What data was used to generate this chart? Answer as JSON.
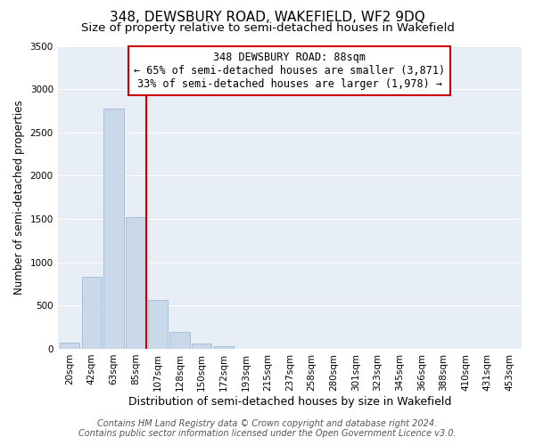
{
  "title": "348, DEWSBURY ROAD, WAKEFIELD, WF2 9DQ",
  "subtitle": "Size of property relative to semi-detached houses in Wakefield",
  "bar_labels": [
    "20sqm",
    "42sqm",
    "63sqm",
    "85sqm",
    "107sqm",
    "128sqm",
    "150sqm",
    "172sqm",
    "193sqm",
    "215sqm",
    "237sqm",
    "258sqm",
    "280sqm",
    "301sqm",
    "323sqm",
    "345sqm",
    "366sqm",
    "388sqm",
    "410sqm",
    "431sqm",
    "453sqm"
  ],
  "bar_values": [
    70,
    830,
    2780,
    1520,
    560,
    190,
    65,
    35,
    0,
    0,
    0,
    0,
    0,
    0,
    0,
    0,
    0,
    0,
    0,
    0,
    0
  ],
  "bar_color": "#c9d9ea",
  "bar_edge_color": "#a0b8d0",
  "vline_color": "#cc0000",
  "ylim": [
    0,
    3500
  ],
  "yticks": [
    0,
    500,
    1000,
    1500,
    2000,
    2500,
    3000,
    3500
  ],
  "xlabel": "Distribution of semi-detached houses by size in Wakefield",
  "ylabel": "Number of semi-detached properties",
  "annotation_title": "348 DEWSBURY ROAD: 88sqm",
  "annotation_line1": "← 65% of semi-detached houses are smaller (3,871)",
  "annotation_line2": "33% of semi-detached houses are larger (1,978) →",
  "annotation_box_color": "#ffffff",
  "annotation_box_edge": "#cc0000",
  "footer_line1": "Contains HM Land Registry data © Crown copyright and database right 2024.",
  "footer_line2": "Contains public sector information licensed under the Open Government Licence v3.0.",
  "plot_bg_color": "#e8eef5",
  "background_color": "#ffffff",
  "grid_color": "#ffffff",
  "title_fontsize": 11,
  "subtitle_fontsize": 9.5,
  "xlabel_fontsize": 9,
  "ylabel_fontsize": 8.5,
  "tick_fontsize": 7.5,
  "footer_fontsize": 7
}
